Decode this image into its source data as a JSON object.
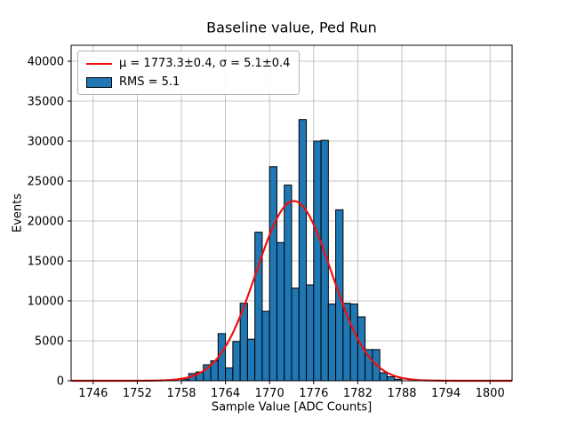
{
  "legend": {
    "fit_label": "μ = 1773.3±0.4, σ = 5.1±0.4",
    "hist_label": "RMS = 5.1"
  },
  "chart_data": {
    "type": "bar",
    "subtype": "histogram",
    "title": "Baseline value, Ped Run",
    "xlabel": "Sample Value [ADC Counts]",
    "ylabel": "Events",
    "xlim": [
      1743,
      1803
    ],
    "ylim": [
      0,
      42000
    ],
    "xticks": [
      1746,
      1752,
      1758,
      1764,
      1770,
      1776,
      1782,
      1788,
      1794,
      1800
    ],
    "yticks": [
      0,
      5000,
      10000,
      15000,
      20000,
      25000,
      30000,
      35000,
      40000
    ],
    "grid": true,
    "legend_position": "upper left",
    "grid_color": "#b0b0b0",
    "bar_color": "#1f77b4",
    "bar_edge_color": "#000000",
    "curve_color": "#ee1111",
    "bin_start": 1758,
    "bin_width": 1,
    "bins": [
      200,
      900,
      1100,
      2000,
      2500,
      5900,
      1600,
      4900,
      9700,
      5200,
      18600,
      8700,
      26800,
      17300,
      24500,
      11600,
      32700,
      12000,
      30000,
      30100,
      9600,
      21400,
      9700,
      9600,
      8000,
      3900,
      3900,
      1000,
      500,
      200
    ],
    "fit": {
      "type": "gaussian",
      "mu": 1773.3,
      "mu_err": 0.4,
      "sigma": 5.1,
      "sigma_err": 0.4,
      "amplitude": 22500
    },
    "rms": 5.1
  }
}
